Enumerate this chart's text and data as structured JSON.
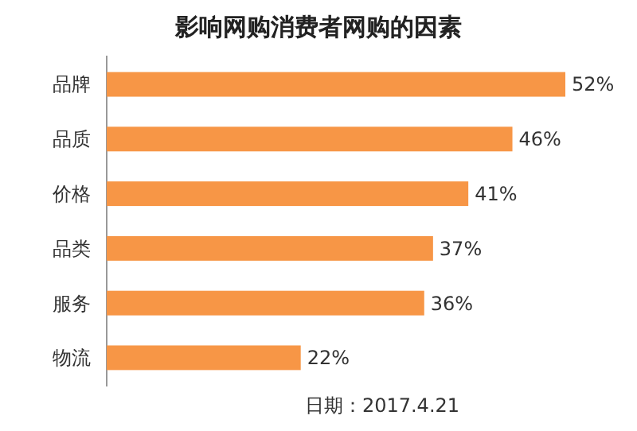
{
  "chart_data": {
    "type": "bar",
    "orientation": "horizontal",
    "title": "影响网购消费者网购的因素",
    "categories": [
      "品牌",
      "品质",
      "价格",
      "品类",
      "服务",
      "物流"
    ],
    "values": [
      52,
      46,
      41,
      37,
      36,
      22
    ],
    "value_labels": [
      "52%",
      "46%",
      "41%",
      "37%",
      "36%",
      "22%"
    ],
    "color": "#f79646",
    "annotations": [
      "日期：2017.4.21"
    ]
  }
}
